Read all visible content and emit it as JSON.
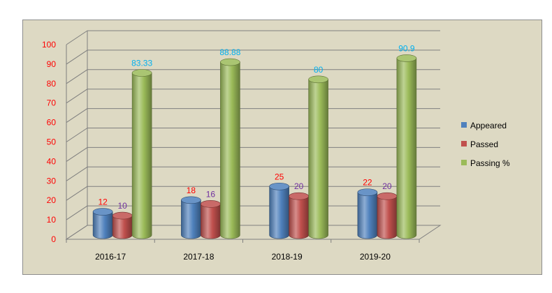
{
  "chart_data": {
    "type": "bar",
    "categories": [
      "2016-17",
      "2017-18",
      "2018-19",
      "2019-20"
    ],
    "series": [
      {
        "name": "Appeared",
        "values": [
          12,
          18,
          25,
          22
        ],
        "color": "#4f81bd",
        "label_color": "#ff0000",
        "labels": [
          "12",
          "18",
          "25",
          "22"
        ]
      },
      {
        "name": "Passed",
        "values": [
          10,
          16,
          20,
          20
        ],
        "color": "#c0504d",
        "label_color": "#7030a0",
        "labels": [
          "10",
          "16",
          "20",
          "20"
        ]
      },
      {
        "name": "Passing %",
        "values": [
          83.33,
          88.88,
          80,
          90.9
        ],
        "color": "#9bbb59",
        "label_color": "#00b0f0",
        "labels": [
          "83.33",
          "88.88",
          "80",
          "90.9"
        ]
      }
    ],
    "yticks": [
      "0",
      "10",
      "20",
      "30",
      "40",
      "50",
      "60",
      "70",
      "80",
      "90",
      "100"
    ],
    "ylim": [
      0,
      100
    ],
    "grid": true,
    "legend_position": "right",
    "style": "3d-cylinder"
  }
}
